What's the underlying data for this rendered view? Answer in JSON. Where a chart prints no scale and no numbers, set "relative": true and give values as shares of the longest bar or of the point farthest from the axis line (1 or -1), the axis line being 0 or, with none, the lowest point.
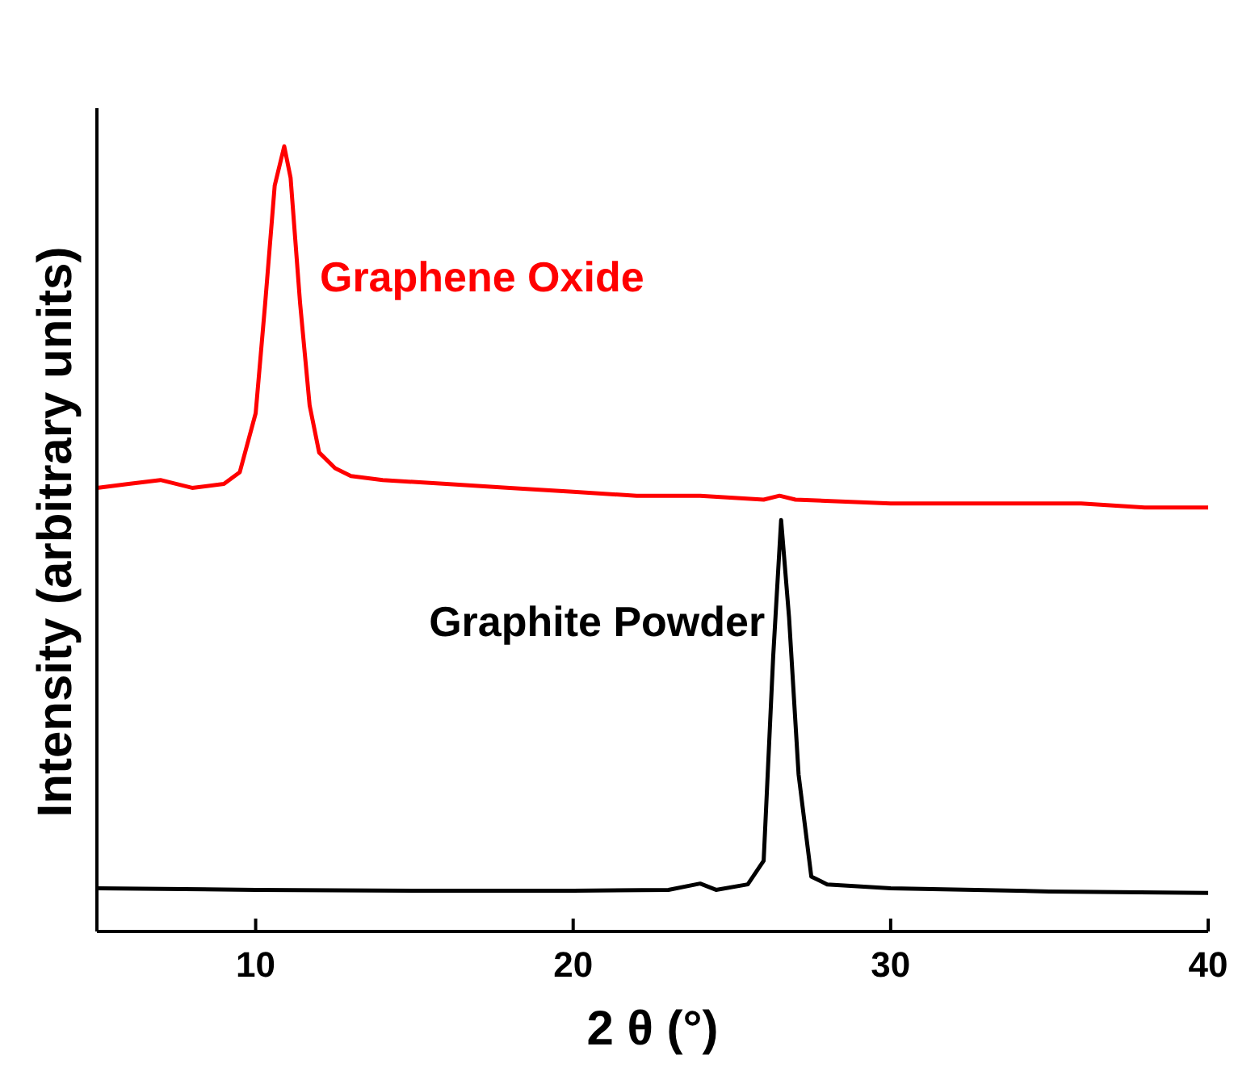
{
  "chart_data": {
    "type": "line",
    "relative": true,
    "xlabel": "2 θ (°)",
    "ylabel": "Intensity (arbitrary units)",
    "xlim": [
      5,
      40
    ],
    "xticks": [
      10,
      20,
      30,
      40
    ],
    "tick_labels": "x",
    "marker": "none",
    "line_style": "solid",
    "series": [
      {
        "name": "Graphene Oxide",
        "color": "#ff0000",
        "x": [
          5,
          6,
          7,
          8,
          9,
          9.5,
          10,
          10.3,
          10.6,
          10.9,
          11.1,
          11.4,
          11.7,
          12,
          12.5,
          13,
          14,
          16,
          18,
          20,
          22,
          24,
          26,
          26.5,
          27,
          30,
          33,
          36,
          38,
          40
        ],
        "values": [
          0.565,
          0.57,
          0.575,
          0.565,
          0.57,
          0.585,
          0.66,
          0.8,
          0.95,
          1.0,
          0.96,
          0.8,
          0.67,
          0.61,
          0.59,
          0.58,
          0.575,
          0.57,
          0.565,
          0.56,
          0.555,
          0.555,
          0.55,
          0.555,
          0.55,
          0.545,
          0.545,
          0.545,
          0.54,
          0.54
        ]
      },
      {
        "name": "Graphite Powder",
        "color": "#000000",
        "x": [
          5,
          10,
          15,
          20,
          23,
          24,
          24.5,
          25.5,
          26,
          26.3,
          26.55,
          26.8,
          27.1,
          27.5,
          28,
          30,
          35,
          40
        ],
        "values": [
          0.055,
          0.053,
          0.052,
          0.052,
          0.053,
          0.061,
          0.053,
          0.06,
          0.09,
          0.35,
          0.524,
          0.4,
          0.2,
          0.07,
          0.06,
          0.055,
          0.051,
          0.049
        ]
      }
    ]
  }
}
